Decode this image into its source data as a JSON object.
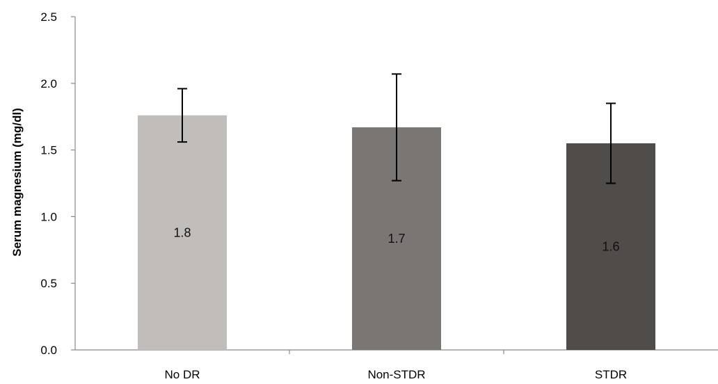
{
  "chart_data": {
    "type": "bar",
    "title": "",
    "xlabel": "",
    "ylabel": "Serum magnesium (mg/dl)",
    "ylim": [
      0,
      2.5
    ],
    "yticks": [
      "0.0",
      "0.5",
      "1.0",
      "1.5",
      "2.0",
      "2.5"
    ],
    "categories": [
      "No DR",
      "Non-STDR",
      "STDR"
    ],
    "values": [
      1.76,
      1.67,
      1.55
    ],
    "error": [
      0.2,
      0.4,
      0.3
    ],
    "data_labels": [
      "1.8",
      "1.7",
      "1.6"
    ],
    "bar_colors": [
      "#c0bdbb",
      "#7a7673",
      "#504c49"
    ],
    "grid": false,
    "legend": "none"
  }
}
